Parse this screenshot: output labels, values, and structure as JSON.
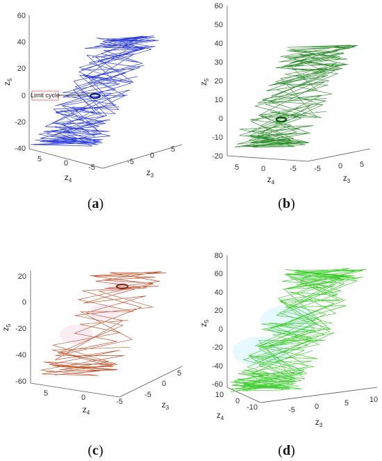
{
  "chart_data": [
    {
      "type": "line",
      "panel_label": "a",
      "color": "#2f3fd8",
      "ticks_z": [
        "60",
        "40",
        "20",
        "0",
        "-20",
        "-40"
      ],
      "ticks_z4": [
        "5",
        "0",
        "-5"
      ],
      "ticks_z3": [
        "-5",
        "0",
        "5"
      ],
      "zlabel": "z5",
      "xlabel": "z4",
      "ylabel": "z3",
      "annotation": "Limit cycle",
      "zlim": [
        -40,
        60
      ]
    },
    {
      "type": "line",
      "panel_label": "b",
      "color": "#2f8f2f",
      "ticks_z": [
        "60",
        "50",
        "40",
        "30",
        "20",
        "10",
        "0",
        "-10",
        "-20"
      ],
      "ticks_z4": [
        "5",
        "0",
        "-5"
      ],
      "ticks_z3": [
        "-5",
        "0",
        "5"
      ],
      "zlabel": "z5",
      "xlabel": "z4",
      "ylabel": "z3",
      "zlim": [
        -20,
        60
      ]
    },
    {
      "type": "line",
      "panel_label": "c",
      "color": "#c0552f",
      "ticks_z": [
        "20",
        "0",
        "-20",
        "-40",
        "-60"
      ],
      "ticks_z4": [
        "5",
        "0",
        "-5"
      ],
      "ticks_z3": [
        "-5",
        "0",
        "5"
      ],
      "zlabel": "z5",
      "xlabel": "z4",
      "ylabel": "z3",
      "zlim": [
        -60,
        20
      ]
    },
    {
      "type": "line",
      "panel_label": "d",
      "color": "#3fcf2f",
      "ticks_z": [
        "80",
        "60",
        "40",
        "20",
        "0",
        "-20",
        "-40",
        "-60"
      ],
      "ticks_z4": [
        "10",
        "0",
        "-10"
      ],
      "ticks_z3": [
        "-5",
        "0",
        "5",
        "10"
      ],
      "zlabel": "z5",
      "xlabel": "z4",
      "ylabel": "z3",
      "zlim": [
        -60,
        80
      ]
    }
  ]
}
